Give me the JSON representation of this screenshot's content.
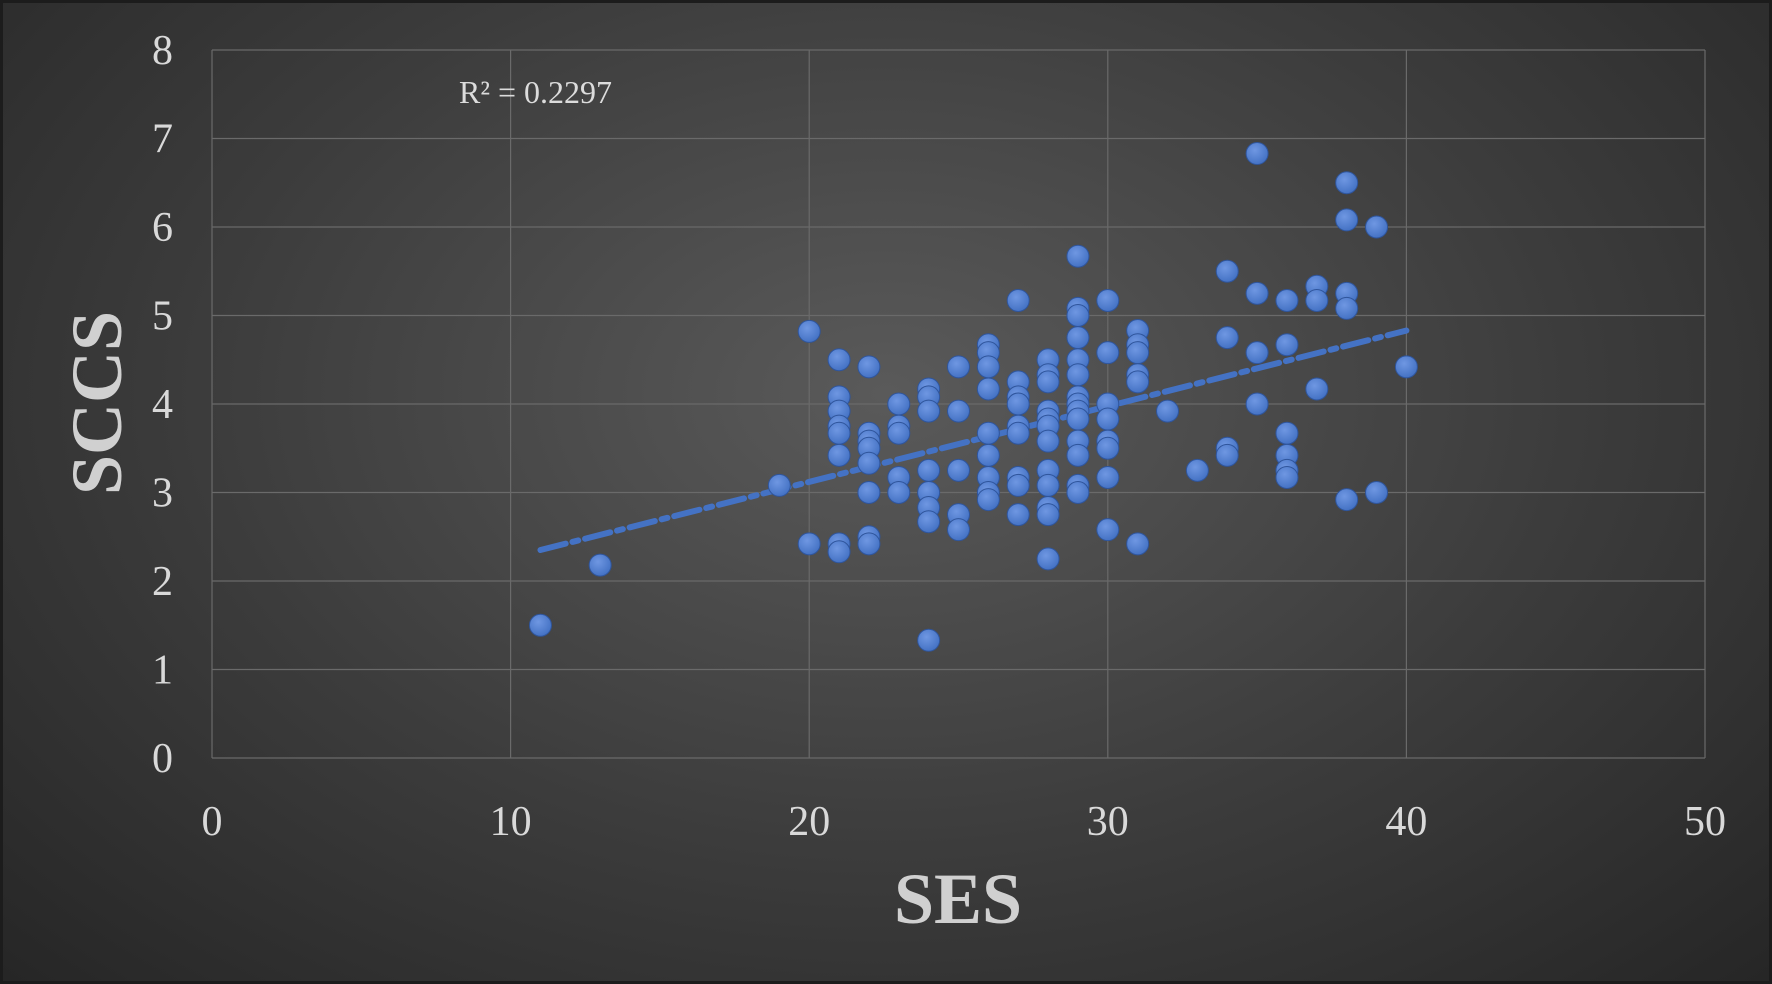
{
  "chart_data": {
    "type": "scatter",
    "title": "",
    "xlabel": "SES",
    "ylabel": "SCCS",
    "xlim": [
      0,
      50
    ],
    "ylim": [
      0,
      8
    ],
    "x_ticks": [
      "0",
      "10",
      "20",
      "30",
      "40",
      "50"
    ],
    "y_ticks": [
      "0",
      "1",
      "2",
      "3",
      "4",
      "5",
      "6",
      "7",
      "8"
    ],
    "grid": true,
    "annotation": "R² = 0.2297",
    "colors": {
      "points": "#4472c4",
      "trendline": "#4472c4",
      "grid": "#6a6a6a",
      "background": "#3c3c3c"
    },
    "trendline": {
      "style": "dashed",
      "x": [
        11,
        40
      ],
      "y": [
        2.35,
        4.83
      ]
    },
    "points": [
      [
        11,
        1.5
      ],
      [
        13,
        2.18
      ],
      [
        19,
        3.08
      ],
      [
        20,
        4.82
      ],
      [
        20,
        2.42
      ],
      [
        21,
        4.5
      ],
      [
        21,
        4.08
      ],
      [
        21,
        3.92
      ],
      [
        21,
        3.75
      ],
      [
        21,
        3.67
      ],
      [
        21,
        3.42
      ],
      [
        21,
        2.42
      ],
      [
        21,
        2.33
      ],
      [
        22,
        4.42
      ],
      [
        22,
        3.67
      ],
      [
        22,
        3.58
      ],
      [
        22,
        3.5
      ],
      [
        22,
        3.33
      ],
      [
        22,
        3.0
      ],
      [
        22,
        2.5
      ],
      [
        22,
        2.42
      ],
      [
        23,
        4.0
      ],
      [
        23,
        3.75
      ],
      [
        23,
        3.67
      ],
      [
        23,
        3.17
      ],
      [
        23,
        3.0
      ],
      [
        24,
        4.17
      ],
      [
        24,
        4.08
      ],
      [
        24,
        3.92
      ],
      [
        24,
        3.25
      ],
      [
        24,
        3.0
      ],
      [
        24,
        2.83
      ],
      [
        24,
        2.67
      ],
      [
        24,
        1.33
      ],
      [
        25,
        4.42
      ],
      [
        25,
        3.92
      ],
      [
        25,
        3.25
      ],
      [
        25,
        2.75
      ],
      [
        25,
        2.58
      ],
      [
        26,
        4.67
      ],
      [
        26,
        4.58
      ],
      [
        26,
        4.42
      ],
      [
        26,
        4.17
      ],
      [
        26,
        3.67
      ],
      [
        26,
        3.42
      ],
      [
        26,
        3.17
      ],
      [
        26,
        3.0
      ],
      [
        26,
        2.92
      ],
      [
        27,
        5.17
      ],
      [
        27,
        4.25
      ],
      [
        27,
        4.08
      ],
      [
        27,
        4.0
      ],
      [
        27,
        3.75
      ],
      [
        27,
        3.67
      ],
      [
        27,
        3.17
      ],
      [
        27,
        3.08
      ],
      [
        27,
        2.75
      ],
      [
        28,
        4.5
      ],
      [
        28,
        4.33
      ],
      [
        28,
        4.25
      ],
      [
        28,
        3.92
      ],
      [
        28,
        3.83
      ],
      [
        28,
        3.75
      ],
      [
        28,
        3.58
      ],
      [
        28,
        3.25
      ],
      [
        28,
        3.08
      ],
      [
        28,
        2.83
      ],
      [
        28,
        2.75
      ],
      [
        28,
        2.25
      ],
      [
        29,
        5.67
      ],
      [
        29,
        5.08
      ],
      [
        29,
        5.0
      ],
      [
        29,
        4.75
      ],
      [
        29,
        4.5
      ],
      [
        29,
        4.33
      ],
      [
        29,
        4.08
      ],
      [
        29,
        4.0
      ],
      [
        29,
        3.92
      ],
      [
        29,
        3.83
      ],
      [
        29,
        3.58
      ],
      [
        29,
        3.42
      ],
      [
        29,
        3.08
      ],
      [
        29,
        3.0
      ],
      [
        30,
        5.17
      ],
      [
        30,
        4.58
      ],
      [
        30,
        4.0
      ],
      [
        30,
        3.83
      ],
      [
        30,
        3.58
      ],
      [
        30,
        3.5
      ],
      [
        30,
        3.17
      ],
      [
        30,
        2.58
      ],
      [
        31,
        4.83
      ],
      [
        31,
        4.67
      ],
      [
        31,
        4.58
      ],
      [
        31,
        4.33
      ],
      [
        31,
        4.25
      ],
      [
        31,
        2.42
      ],
      [
        32,
        3.92
      ],
      [
        33,
        3.25
      ],
      [
        34,
        5.5
      ],
      [
        34,
        4.75
      ],
      [
        34,
        3.5
      ],
      [
        34,
        3.42
      ],
      [
        35,
        6.83
      ],
      [
        35,
        5.25
      ],
      [
        35,
        4.58
      ],
      [
        35,
        4.0
      ],
      [
        36,
        5.17
      ],
      [
        36,
        4.67
      ],
      [
        36,
        3.67
      ],
      [
        36,
        3.42
      ],
      [
        36,
        3.25
      ],
      [
        36,
        3.17
      ],
      [
        37,
        5.33
      ],
      [
        37,
        5.17
      ],
      [
        37,
        4.17
      ],
      [
        38,
        6.5
      ],
      [
        38,
        6.08
      ],
      [
        38,
        5.25
      ],
      [
        38,
        5.08
      ],
      [
        38,
        2.92
      ],
      [
        39,
        6.0
      ],
      [
        39,
        3.0
      ],
      [
        40,
        4.42
      ]
    ]
  }
}
